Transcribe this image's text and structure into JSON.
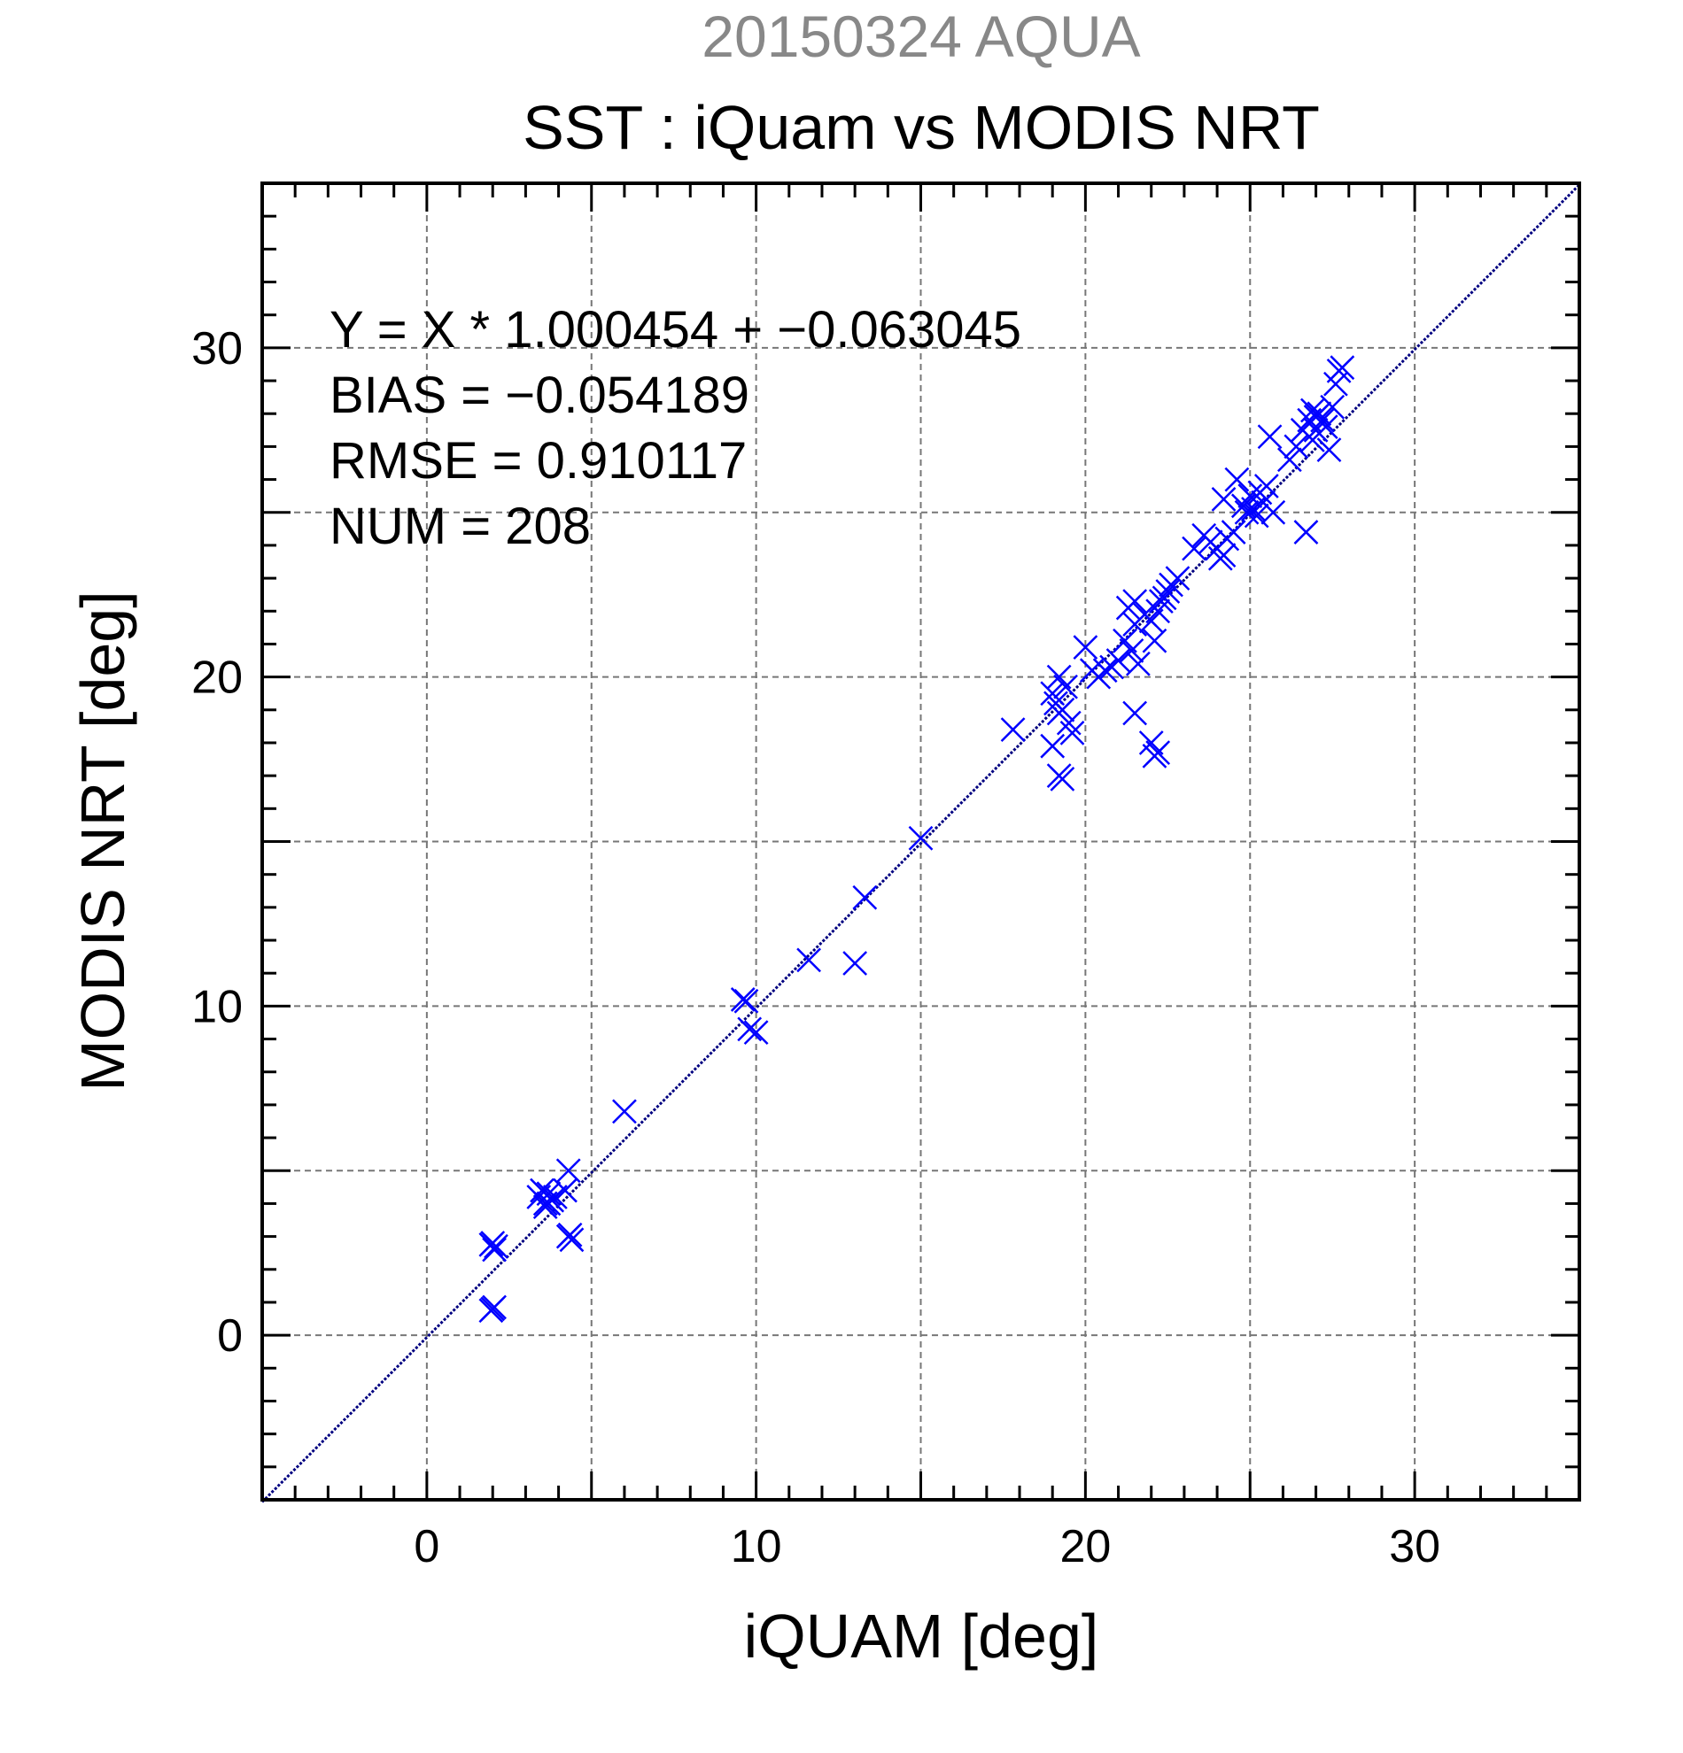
{
  "chart_data": {
    "type": "scatter",
    "supertitle": "20150324 AQUA",
    "title": "SST : iQuam vs MODIS NRT",
    "xlabel": "iQUAM [deg]",
    "ylabel": "MODIS NRT [deg]",
    "xlim": [
      -5,
      35
    ],
    "ylim": [
      -5,
      35
    ],
    "xticks": [
      0,
      10,
      20,
      30
    ],
    "yticks": [
      0,
      10,
      20,
      30
    ],
    "grid": true,
    "stats": [
      "Y = X * 1.000454 + −0.063045",
      "BIAS = −0.054189",
      "RMSE = 0.910117",
      "NUM = 208"
    ],
    "colors": {
      "points": "#0000ff",
      "fit_line": "#000080",
      "supertitle": "#888888",
      "grid": "#777777"
    },
    "fit_line": {
      "slope": 1.000454,
      "intercept": -0.063045
    },
    "series": [
      {
        "marker": "x",
        "points": [
          [
            2.0,
            0.8
          ],
          [
            1.95,
            0.75
          ],
          [
            2.05,
            0.85
          ],
          [
            2.0,
            2.8
          ],
          [
            2.05,
            2.6
          ],
          [
            2.1,
            2.7
          ],
          [
            1.95,
            2.75
          ],
          [
            3.4,
            4.2
          ],
          [
            3.5,
            4.4
          ],
          [
            3.6,
            4.0
          ],
          [
            3.7,
            4.3
          ],
          [
            3.8,
            4.1
          ],
          [
            3.9,
            4.2
          ],
          [
            3.6,
            3.9
          ],
          [
            3.7,
            4.0
          ],
          [
            4.3,
            5.0
          ],
          [
            4.2,
            4.4
          ],
          [
            4.3,
            3.0
          ],
          [
            4.4,
            2.9
          ],
          [
            4.35,
            3.05
          ],
          [
            6.0,
            6.8
          ],
          [
            9.6,
            10.2
          ],
          [
            9.7,
            10.15
          ],
          [
            9.8,
            9.3
          ],
          [
            10.0,
            9.2
          ],
          [
            11.6,
            11.4
          ],
          [
            13.0,
            11.3
          ],
          [
            13.3,
            13.3
          ],
          [
            15.0,
            15.1
          ],
          [
            17.8,
            18.4
          ],
          [
            19.0,
            19.5
          ],
          [
            19.1,
            19.2
          ],
          [
            19.2,
            18.9
          ],
          [
            19.3,
            19.0
          ],
          [
            19.2,
            20.0
          ],
          [
            19.0,
            17.9
          ],
          [
            19.4,
            19.7
          ],
          [
            19.5,
            18.6
          ],
          [
            19.6,
            18.3
          ],
          [
            19.2,
            17.0
          ],
          [
            19.3,
            16.9
          ],
          [
            20.0,
            20.9
          ],
          [
            20.2,
            20.2
          ],
          [
            20.4,
            20.0
          ],
          [
            20.6,
            20.2
          ],
          [
            20.8,
            20.3
          ],
          [
            21.0,
            20.5
          ],
          [
            21.2,
            21.1
          ],
          [
            21.4,
            20.8
          ],
          [
            21.5,
            21.6
          ],
          [
            21.3,
            22.1
          ],
          [
            21.5,
            22.3
          ],
          [
            21.6,
            20.4
          ],
          [
            21.8,
            21.9
          ],
          [
            22.0,
            21.7
          ],
          [
            22.1,
            21.1
          ],
          [
            22.2,
            22.0
          ],
          [
            22.3,
            22.3
          ],
          [
            21.5,
            18.9
          ],
          [
            22.0,
            18.0
          ],
          [
            22.1,
            17.6
          ],
          [
            22.2,
            17.7
          ],
          [
            22.5,
            22.6
          ],
          [
            22.6,
            22.8
          ],
          [
            22.8,
            23.0
          ],
          [
            22.4,
            22.4
          ],
          [
            23.3,
            23.9
          ],
          [
            23.6,
            24.3
          ],
          [
            23.8,
            24.1
          ],
          [
            24.0,
            23.9
          ],
          [
            24.1,
            23.6
          ],
          [
            24.2,
            23.7
          ],
          [
            24.3,
            24.2
          ],
          [
            24.5,
            24.4
          ],
          [
            24.2,
            25.4
          ],
          [
            24.6,
            26.0
          ],
          [
            24.8,
            25.2
          ],
          [
            24.9,
            25.0
          ],
          [
            25.0,
            25.5
          ],
          [
            25.1,
            25.1
          ],
          [
            25.2,
            24.9
          ],
          [
            25.3,
            25.6
          ],
          [
            25.4,
            25.3
          ],
          [
            25.5,
            25.8
          ],
          [
            25.6,
            27.3
          ],
          [
            25.7,
            25.0
          ],
          [
            26.2,
            26.6
          ],
          [
            26.4,
            27.0
          ],
          [
            26.6,
            27.5
          ],
          [
            26.7,
            24.4
          ],
          [
            26.8,
            27.8
          ],
          [
            26.9,
            28.1
          ],
          [
            27.0,
            27.5
          ],
          [
            27.1,
            28.0
          ],
          [
            27.2,
            27.8
          ],
          [
            27.3,
            27.6
          ],
          [
            27.4,
            26.9
          ],
          [
            27.5,
            28.2
          ],
          [
            27.6,
            28.9
          ],
          [
            27.7,
            29.3
          ],
          [
            27.8,
            29.4
          ],
          [
            26.9,
            27.2
          ],
          [
            27.0,
            27.9
          ]
        ]
      }
    ]
  }
}
